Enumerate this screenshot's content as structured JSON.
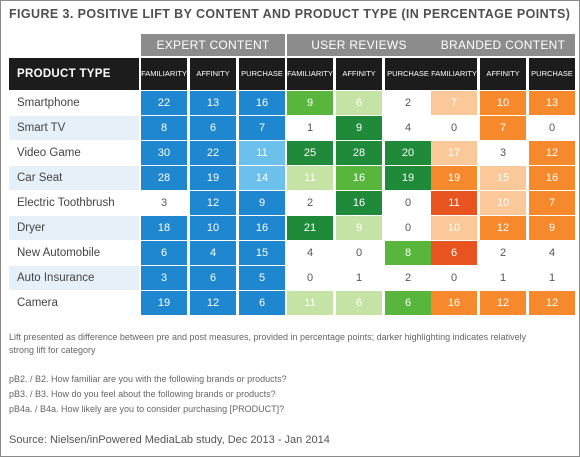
{
  "title": "FIGURE 3. POSITIVE LIFT BY CONTENT AND PRODUCT TYPE (IN PERCENTAGE POINTS)",
  "row_header": "PRODUCT TYPE",
  "notes": [
    "Lift presented as difference between pre and post measures, provided in percentage points; darker highlighting indicates relatively",
    "strong lift for category",
    "pB2. / B2. How familiar are you with the following brands or products?",
    "pB3. / B3. How do you feel about the following brands or products?",
    "pB4a. / B4a. How likely are you to consider purchasing [PRODUCT]?"
  ],
  "source": "Source: Nielsen/inPowered MediaLab study, Dec 2013 - Jan 2014",
  "colors": {
    "blue_dark": "#0a5fa8",
    "blue_mid": "#1f86d0",
    "blue_light": "#6cc0ec",
    "blue_pale": "#b8e0f5",
    "green_dark": "#1f8a3a",
    "green_mid": "#57b63b",
    "green_light": "#c6e3a6",
    "orange_dark": "#e8541f",
    "orange_mid": "#f5892b",
    "orange_light": "#fbc89a"
  },
  "chart_data": {
    "type": "table",
    "groups": [
      {
        "name": "EXPERT CONTENT",
        "columns": [
          "FAMILIARITY",
          "AFFINITY",
          "PURCHASE"
        ],
        "palette": "blue"
      },
      {
        "name": "USER REVIEWS",
        "columns": [
          "FAMILIARITY",
          "AFFINITY",
          "PURCHASE"
        ],
        "palette": "green"
      },
      {
        "name": "BRANDED CONTENT",
        "columns": [
          "FAMILIARITY",
          "AFFINITY",
          "PURCHASE"
        ],
        "palette": "orange"
      }
    ],
    "rows": [
      {
        "product": "Smartphone",
        "values": [
          22,
          13,
          16,
          9,
          6,
          2,
          7,
          10,
          13
        ],
        "shades": [
          "mid",
          "mid",
          "mid",
          "mid",
          "light",
          "none",
          "light",
          "mid",
          "mid"
        ]
      },
      {
        "product": "Smart TV",
        "values": [
          8,
          6,
          7,
          1,
          9,
          4,
          0,
          7,
          0
        ],
        "shades": [
          "mid",
          "mid",
          "mid",
          "none",
          "dark",
          "none",
          "none",
          "mid",
          "none"
        ]
      },
      {
        "product": "Video Game",
        "values": [
          30,
          22,
          11,
          25,
          28,
          20,
          17,
          3,
          12
        ],
        "shades": [
          "mid",
          "mid",
          "light",
          "dark",
          "dark",
          "dark",
          "light",
          "none",
          "mid"
        ]
      },
      {
        "product": "Car Seat",
        "values": [
          28,
          19,
          14,
          11,
          16,
          19,
          19,
          15,
          16
        ],
        "shades": [
          "mid",
          "mid",
          "light",
          "light",
          "mid",
          "dark",
          "mid",
          "light",
          "mid"
        ]
      },
      {
        "product": "Electric Toothbrush",
        "values": [
          3,
          12,
          9,
          2,
          16,
          0,
          11,
          10,
          7
        ],
        "shades": [
          "none",
          "mid",
          "mid",
          "none",
          "dark",
          "none",
          "dark",
          "light",
          "mid"
        ]
      },
      {
        "product": "Dryer",
        "values": [
          18,
          10,
          16,
          21,
          9,
          0,
          10,
          12,
          9
        ],
        "shades": [
          "mid",
          "mid",
          "mid",
          "dark",
          "light",
          "none",
          "light",
          "mid",
          "mid"
        ]
      },
      {
        "product": "New Automobile",
        "values": [
          6,
          4,
          15,
          4,
          0,
          8,
          6,
          2,
          4
        ],
        "shades": [
          "mid",
          "mid",
          "mid",
          "none",
          "none",
          "mid",
          "dark",
          "none",
          "none"
        ]
      },
      {
        "product": "Auto Insurance",
        "values": [
          3,
          6,
          5,
          0,
          1,
          2,
          0,
          1,
          1
        ],
        "shades": [
          "mid",
          "mid",
          "mid",
          "none",
          "none",
          "none",
          "none",
          "none",
          "none"
        ]
      },
      {
        "product": "Camera",
        "values": [
          19,
          12,
          6,
          11,
          6,
          6,
          16,
          12,
          12
        ],
        "shades": [
          "mid",
          "mid",
          "mid",
          "light",
          "light",
          "mid",
          "mid",
          "mid",
          "mid"
        ]
      }
    ]
  }
}
